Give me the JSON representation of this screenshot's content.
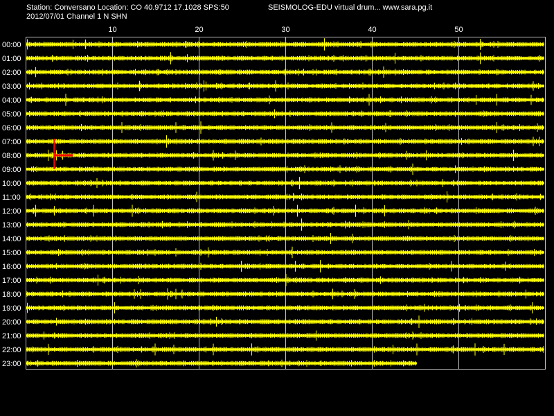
{
  "header": {
    "station_line": "Station: Conversano Location: CO 40.9712 17.1028 SPS:50",
    "program_line": "SEISMOLOG-EDU virtual drum... www.sara.pg.it",
    "date_line": "2012/07/01  Channel 1 N SHN"
  },
  "colors": {
    "background": "#000000",
    "trace": "#ffff00",
    "grid": "#c0c0c0",
    "text": "#ffffff",
    "event_marker": "#ff0000"
  },
  "drum": {
    "minute_labels": [
      "10",
      "20",
      "30",
      "40",
      "50"
    ],
    "hour_labels": [
      "00:00",
      "01:00",
      "02:00",
      "03:00",
      "04:00",
      "05:00",
      "06:00",
      "07:00",
      "08:00",
      "09:00",
      "10:00",
      "11:00",
      "12:00",
      "13:00",
      "14:00",
      "15:00",
      "16:00",
      "17:00",
      "18:00",
      "19:00",
      "20:00",
      "21:00",
      "22:00",
      "23:00"
    ],
    "last_row_minutes_recorded": 45.2,
    "event_marker": {
      "hour": "08:00",
      "minute": 3.3
    }
  }
}
